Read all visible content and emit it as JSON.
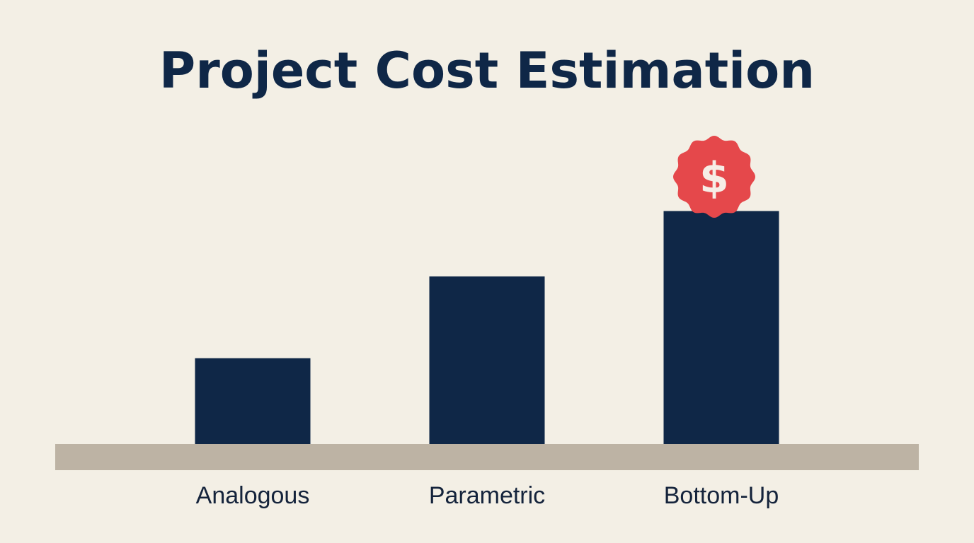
{
  "chart_data": {
    "type": "bar",
    "title": "Project Cost Estimation",
    "categories": [
      "Analogous",
      "Parametric",
      "Bottom-Up"
    ],
    "values": [
      1.05,
      2.05,
      2.85
    ],
    "xlabel": "",
    "ylabel": "",
    "ylim": [
      0,
      3.2
    ],
    "grid": false,
    "legend": "none",
    "highlight": {
      "category": "Bottom-Up",
      "icon": "dollar-badge-icon",
      "glyph": "$",
      "color": "#e5484b"
    },
    "colors": {
      "bar": "#0f2747",
      "baseline": "#bdb3a4",
      "background": "#f3efe5",
      "title": "#0f2747",
      "label": "#14233b"
    }
  }
}
